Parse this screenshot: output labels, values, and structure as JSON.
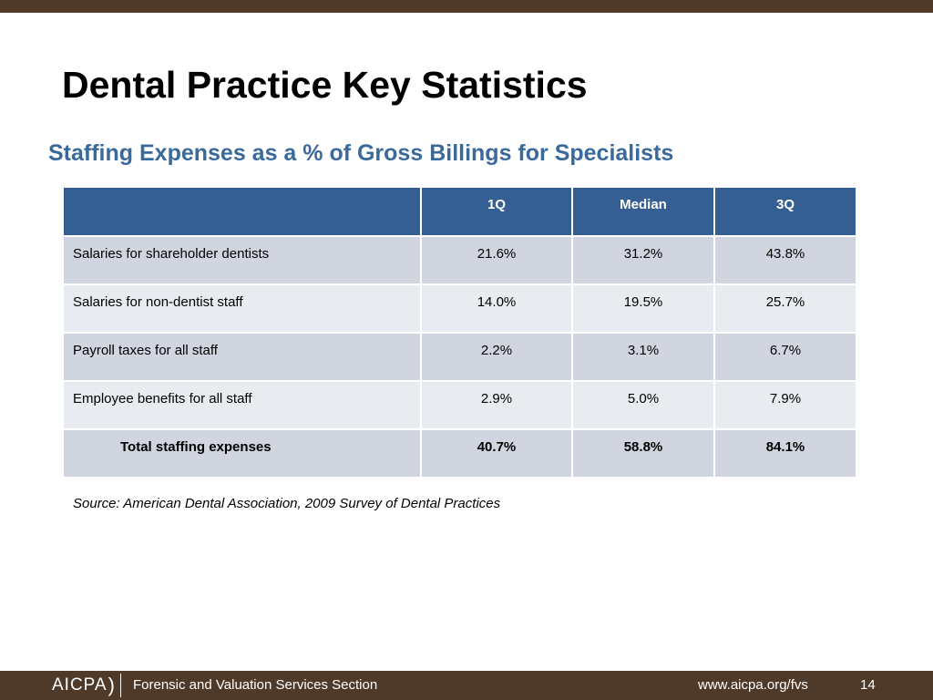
{
  "slide": {
    "title": "Dental Practice Key Statistics",
    "subtitle": "Staffing Expenses as a % of Gross Billings for Specialists"
  },
  "table": {
    "headers": [
      "",
      "1Q",
      "Median",
      "3Q"
    ],
    "rows": [
      {
        "label": "Salaries for shareholder dentists",
        "q1": "21.6%",
        "median": "31.2%",
        "q3": "43.8%"
      },
      {
        "label": "Salaries for non-dentist staff",
        "q1": "14.0%",
        "median": "19.5%",
        "q3": "25.7%"
      },
      {
        "label": "Payroll taxes for all staff",
        "q1": "2.2%",
        "median": "3.1%",
        "q3": "6.7%"
      },
      {
        "label": "Employee benefits for all staff",
        "q1": "2.9%",
        "median": "5.0%",
        "q3": "7.9%"
      },
      {
        "label": "Total staffing expenses",
        "q1": "40.7%",
        "median": "58.8%",
        "q3": "84.1%"
      }
    ]
  },
  "source": "Source:  American Dental Association, 2009 Survey of Dental Practices",
  "footer": {
    "logo_text": "AICPA",
    "section": "Forensic and Valuation Services Section",
    "url": "www.aicpa.org/fvs",
    "page_number": "14"
  },
  "colors": {
    "brand_brown": "#4f3a2a",
    "header_blue": "#355f93",
    "subtitle_blue": "#3a6a9b",
    "row_dark": "#d0d5e0",
    "row_light": "#e8ebf0"
  }
}
